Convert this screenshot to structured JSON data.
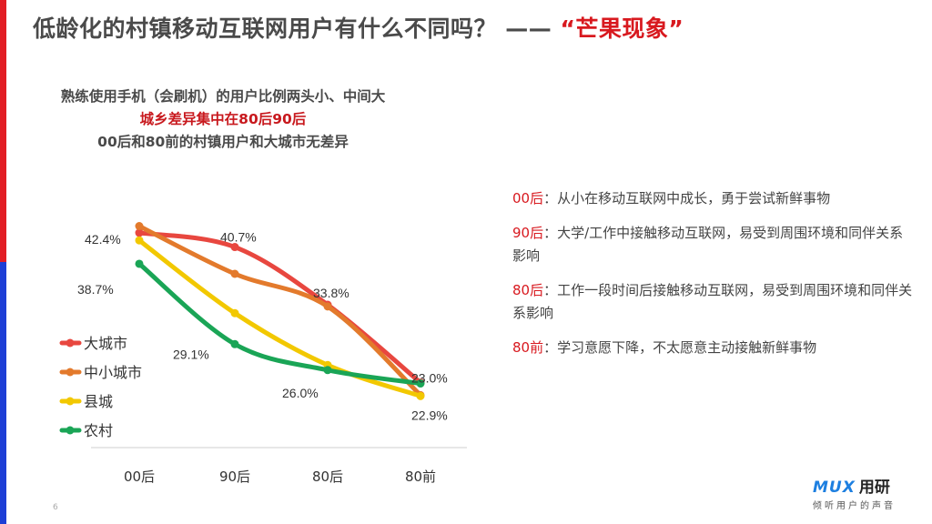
{
  "header": {
    "title_main": "低龄化的村镇移动互联网用户有什么不同吗？",
    "title_dash": "——",
    "title_highlight": "“芒果现象”"
  },
  "subtitle": {
    "line1": "熟练使用手机（会刷机）的用户比例两头小、中间大",
    "line2": "城乡差异集中在80后90后",
    "line3": "00后和80前的村镇用户和大城市无差异"
  },
  "colors": {
    "red": "#e8473f",
    "orange": "#e37a2c",
    "yellow": "#f2c800",
    "green": "#1aa556",
    "accent": "#d8191f"
  },
  "chart_data": {
    "type": "line",
    "categories": [
      "00后",
      "90后",
      "80后",
      "80前"
    ],
    "series": [
      {
        "name": "大城市",
        "values": [
          42.4,
          40.7,
          33.8,
          24.5
        ]
      },
      {
        "name": "中小城市",
        "values": [
          43.2,
          37.5,
          33.6,
          23.0
        ]
      },
      {
        "name": "县城",
        "values": [
          41.5,
          32.8,
          26.6,
          22.9
        ]
      },
      {
        "name": "农村",
        "values": [
          38.7,
          29.1,
          26.0,
          24.4
        ]
      }
    ],
    "data_labels": [
      {
        "text": "42.4%",
        "series": 0,
        "index": 0
      },
      {
        "text": "40.7%",
        "series": 0,
        "index": 1
      },
      {
        "text": "33.8%",
        "series": 0,
        "index": 2
      },
      {
        "text": "23.0%",
        "series": 1,
        "index": 3
      },
      {
        "text": "22.9%",
        "series": 2,
        "index": 3
      },
      {
        "text": "38.7%",
        "series": 3,
        "index": 0
      },
      {
        "text": "29.1%",
        "series": 3,
        "index": 1
      },
      {
        "text": "26.0%",
        "series": 3,
        "index": 2
      }
    ],
    "ylim": [
      20,
      45
    ],
    "legend_position": "left",
    "grid": false
  },
  "notes": [
    {
      "key": "00后",
      "text": "：从小在移动互联网中成长，勇于尝试新鲜事物"
    },
    {
      "key": "90后",
      "text": "：大学/工作中接触移动互联网，易受到周围环境和同伴关系影响"
    },
    {
      "key": "80后",
      "text": "：工作一段时间后接触移动互联网，易受到周围环境和同伴关系影响"
    },
    {
      "key": "80前",
      "text": "：学习意愿下降，不太愿意主动接触新鲜事物"
    }
  ],
  "logo": {
    "mux": "MUX",
    "cn": "用研",
    "tagline": "倾听用户的声音"
  },
  "page_number": "6"
}
